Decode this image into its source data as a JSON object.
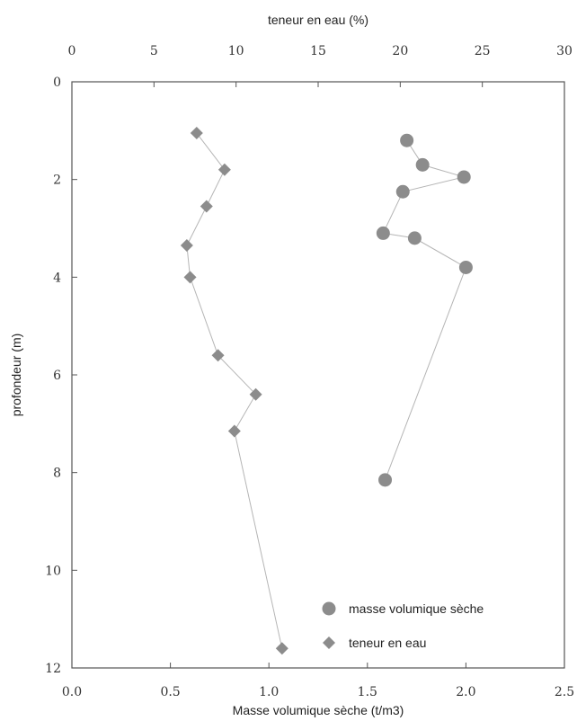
{
  "chart_data": {
    "type": "scatter",
    "x_top_label": "teneur en eau (%)",
    "x_bottom_label": "Masse volumique sèche  (t/m3)",
    "ylabel": "profondeur (m)",
    "x_top_lim": [
      0,
      30
    ],
    "x_bottom_lim": [
      0.0,
      2.5
    ],
    "ylim": [
      0,
      12
    ],
    "y_inverted": true,
    "x_top_ticks": [
      "0",
      "5",
      "10",
      "15",
      "20",
      "25",
      "30"
    ],
    "x_bottom_ticks": [
      "0.0",
      "0.5",
      "1.0",
      "1.5",
      "2.0",
      "2.5"
    ],
    "y_ticks": [
      "0",
      "2",
      "4",
      "6",
      "8",
      "10",
      "12"
    ],
    "legend_position": "bottom-right",
    "series": [
      {
        "name": "masse volumique sèche",
        "axis": "bottom",
        "marker": "circle",
        "color": "#8c8c8c",
        "points": [
          {
            "x": 1.7,
            "y": 1.2
          },
          {
            "x": 1.78,
            "y": 1.7
          },
          {
            "x": 1.99,
            "y": 1.95
          },
          {
            "x": 1.68,
            "y": 2.25
          },
          {
            "x": 1.58,
            "y": 3.1
          },
          {
            "x": 1.74,
            "y": 3.2
          },
          {
            "x": 2.0,
            "y": 3.8
          },
          {
            "x": 1.59,
            "y": 8.15
          }
        ]
      },
      {
        "name": "teneur en eau",
        "axis": "top",
        "marker": "diamond",
        "color": "#8c8c8c",
        "points": [
          {
            "x": 7.6,
            "y": 1.05
          },
          {
            "x": 9.3,
            "y": 1.8
          },
          {
            "x": 8.2,
            "y": 2.55
          },
          {
            "x": 7.0,
            "y": 3.35
          },
          {
            "x": 7.2,
            "y": 4.0
          },
          {
            "x": 8.9,
            "y": 5.6
          },
          {
            "x": 11.2,
            "y": 6.4
          },
          {
            "x": 9.9,
            "y": 7.15
          },
          {
            "x": 12.8,
            "y": 11.6
          }
        ]
      }
    ]
  }
}
